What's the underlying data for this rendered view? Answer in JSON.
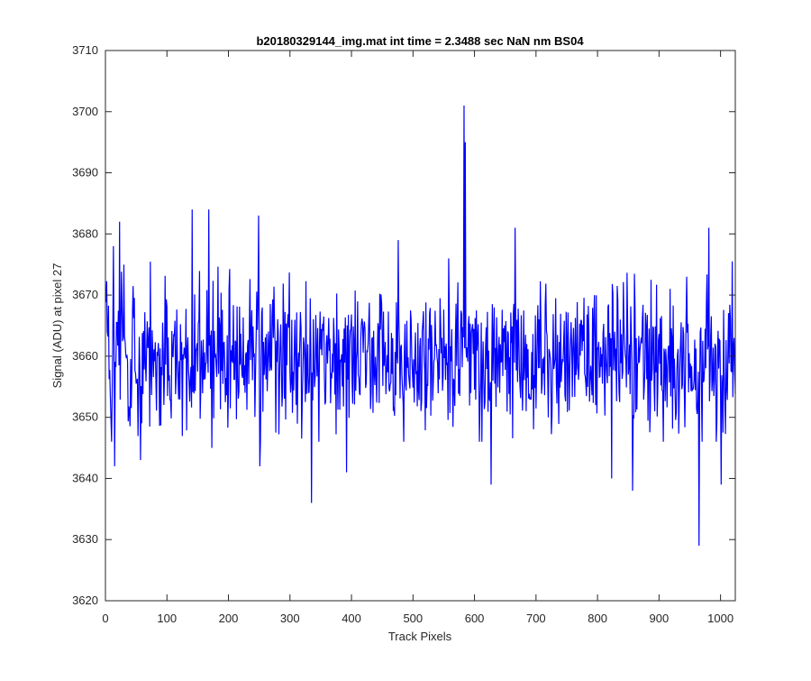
{
  "chart_data": {
    "type": "line",
    "title": "b20180329144_img.mat int time = 2.3488 sec  NaN nm BS04",
    "xlabel": "Track Pixels",
    "ylabel": "Signal (ADU) at pixel 27",
    "xlim": [
      0,
      1024
    ],
    "ylim": [
      3620,
      3710
    ],
    "xticks": [
      0,
      100,
      200,
      300,
      400,
      500,
      600,
      700,
      800,
      900,
      1000
    ],
    "yticks": [
      3620,
      3630,
      3640,
      3650,
      3660,
      3670,
      3680,
      3690,
      3700,
      3710
    ],
    "grid": false,
    "series": [
      {
        "color": "#0000ff",
        "n_points": 1024,
        "baseline": 3660,
        "noise_amplitude": 9,
        "peaks": [
          {
            "x": 12,
            "y": 3678
          },
          {
            "x": 14,
            "y": 3642
          },
          {
            "x": 22,
            "y": 3682
          },
          {
            "x": 56,
            "y": 3643
          },
          {
            "x": 140,
            "y": 3684
          },
          {
            "x": 167,
            "y": 3684
          },
          {
            "x": 172,
            "y": 3645
          },
          {
            "x": 248,
            "y": 3683
          },
          {
            "x": 250,
            "y": 3642
          },
          {
            "x": 334,
            "y": 3636
          },
          {
            "x": 391,
            "y": 3641
          },
          {
            "x": 475,
            "y": 3679
          },
          {
            "x": 582,
            "y": 3701
          },
          {
            "x": 584,
            "y": 3695
          },
          {
            "x": 626,
            "y": 3639
          },
          {
            "x": 665,
            "y": 3681
          },
          {
            "x": 822,
            "y": 3640
          },
          {
            "x": 856,
            "y": 3638
          },
          {
            "x": 964,
            "y": 3629
          },
          {
            "x": 980,
            "y": 3681
          },
          {
            "x": 1000,
            "y": 3639
          }
        ]
      }
    ]
  },
  "colors": {
    "line": "#0000ff",
    "axes": "#262626",
    "background": "#ffffff"
  }
}
